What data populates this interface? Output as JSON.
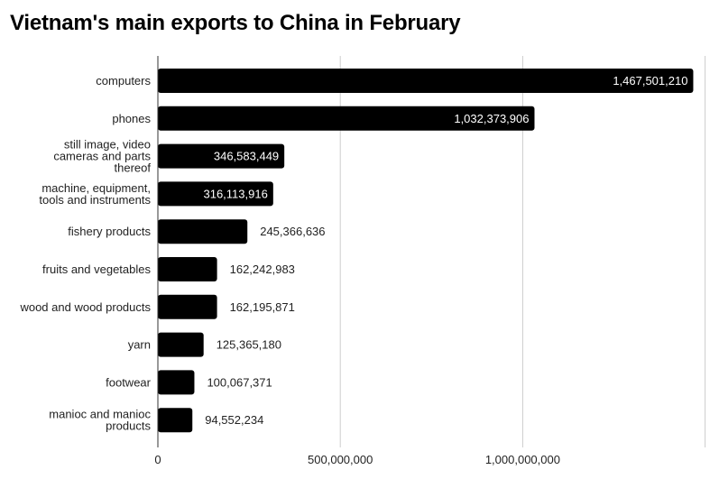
{
  "chart_data": {
    "type": "bar",
    "orientation": "horizontal",
    "title": "Vietnam's main exports to China in February",
    "categories": [
      "computers",
      "phones",
      "still image, video cameras and parts thereof",
      "machine, equipment, tools and instruments",
      "fishery products",
      "fruits and vegetables",
      "wood and wood products",
      "yarn",
      "footwear",
      "manioc and manioc products"
    ],
    "category_lines": [
      [
        "computers"
      ],
      [
        "phones"
      ],
      [
        "still image, video",
        "cameras and parts",
        "thereof"
      ],
      [
        "machine, equipment,",
        "tools and instruments"
      ],
      [
        "fishery products"
      ],
      [
        "fruits and vegetables"
      ],
      [
        "wood and wood products"
      ],
      [
        "yarn"
      ],
      [
        "footwear"
      ],
      [
        "manioc and manioc",
        "products"
      ]
    ],
    "values": [
      1467501210,
      1032373906,
      346583449,
      316113916,
      245366636,
      162242983,
      162195871,
      125365180,
      100067371,
      94552234
    ],
    "value_labels": [
      "1,467,501,210",
      "1,032,373,906",
      "346,583,449",
      "316,113,916",
      "245,366,636",
      "162,242,983",
      "162,195,871",
      "125,365,180",
      "100,067,371",
      "94,552,234"
    ],
    "xlim": [
      0,
      1500000000
    ],
    "xticks": [
      0,
      500000000,
      1000000000
    ],
    "xtick_labels": [
      "0",
      "500,000,000",
      "1,000,000,000"
    ],
    "grid": true,
    "colors": {
      "bar": "#000000",
      "grid": "#cccccc",
      "label_inside": "#ffffff",
      "label_outside": "#222222"
    }
  }
}
